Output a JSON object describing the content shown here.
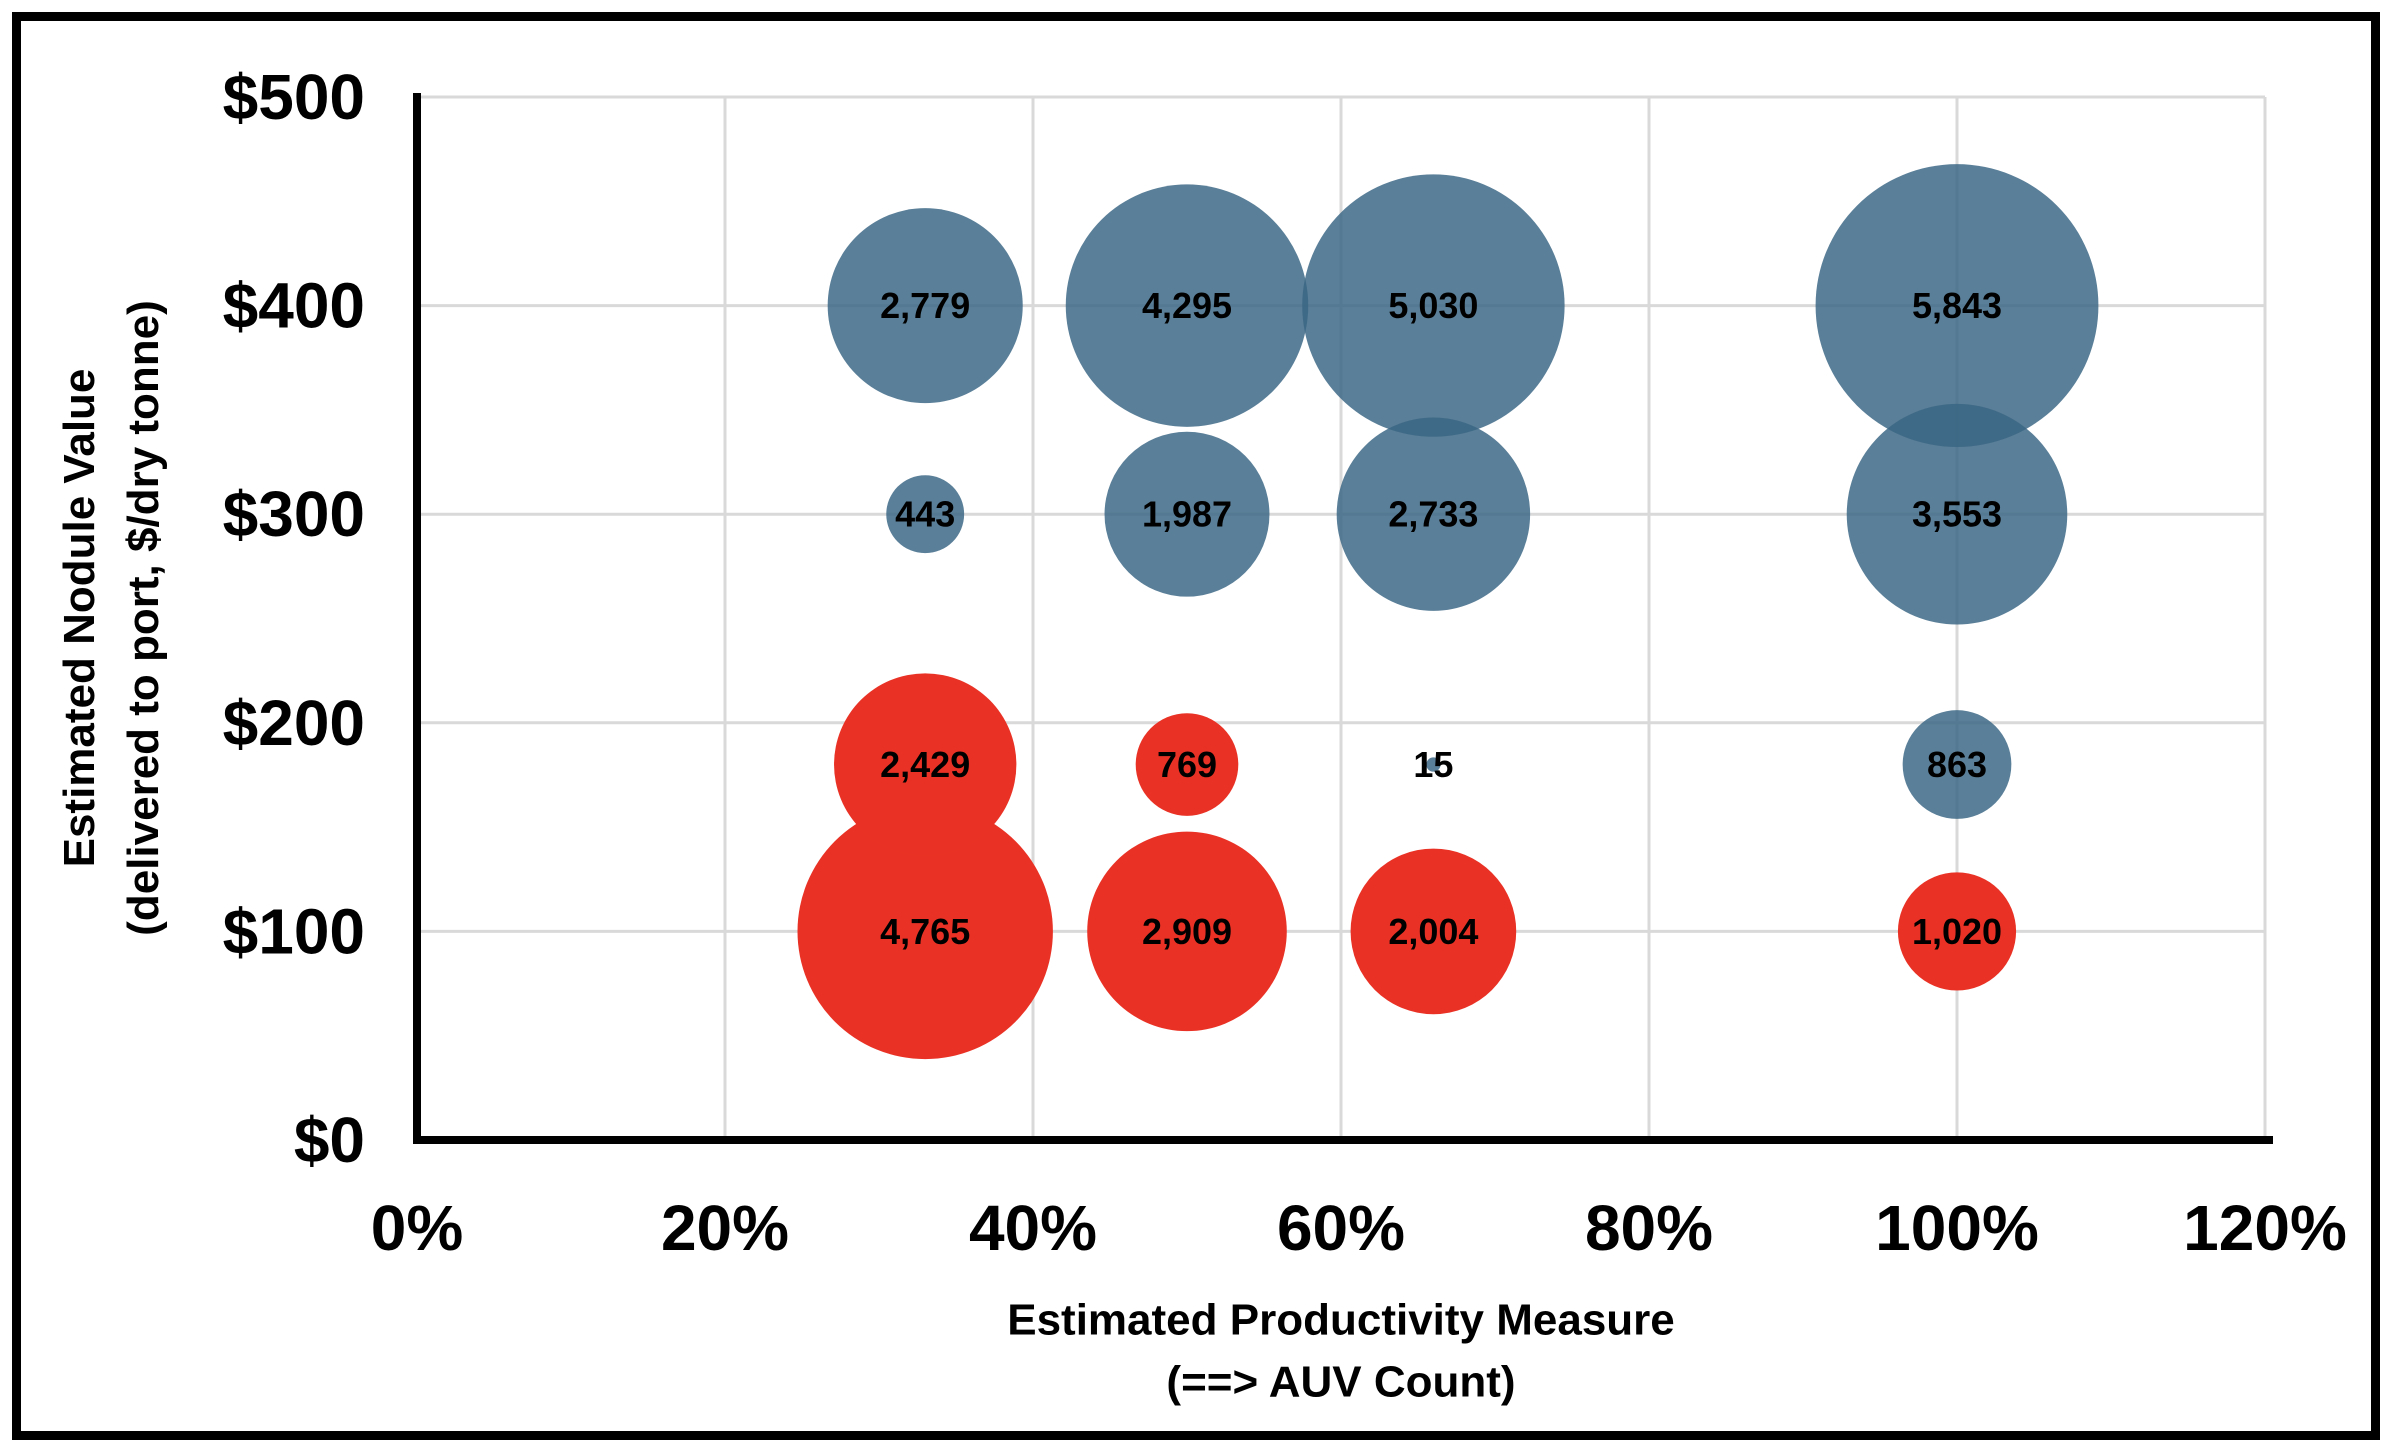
{
  "chart_data": {
    "type": "bubble",
    "title": "",
    "legend": "none",
    "grid": true,
    "x_axis": {
      "title_line1": "Estimated Productivity Measure",
      "title_line2": "(==> AUV Count)",
      "ticks": [
        "0%",
        "20%",
        "40%",
        "60%",
        "80%",
        "100%",
        "120%"
      ],
      "tick_values": [
        0,
        20,
        40,
        60,
        80,
        100,
        120
      ],
      "range": [
        0,
        120
      ]
    },
    "y_axis": {
      "title_line1": "Estimated Nodule Value",
      "title_line2": "(delivered to port, $/dry tonne)",
      "ticks": [
        "$0",
        "$100",
        "$200",
        "$300",
        "$400",
        "$500"
      ],
      "tick_values": [
        0,
        100,
        200,
        300,
        400,
        500
      ],
      "range": [
        0,
        500
      ]
    },
    "colors": {
      "blue_fill": "#3A6684",
      "blue_opacity": 0.84,
      "red_fill": "#E93225",
      "red_opacity": 1,
      "gridline": "#D9D9D9",
      "axis_line": "#000000",
      "label_text": "#000000",
      "frame": "#000000",
      "background": "#FFFFFF"
    },
    "series": [
      {
        "name": "blue-bubbles",
        "color_key": "blue",
        "points": [
          {
            "x": 33,
            "y": 400,
            "value": 2779,
            "label": "2,779"
          },
          {
            "x": 50,
            "y": 400,
            "value": 4295,
            "label": "4,295"
          },
          {
            "x": 66,
            "y": 400,
            "value": 5030,
            "label": "5,030"
          },
          {
            "x": 100,
            "y": 400,
            "value": 5843,
            "label": "5,843"
          },
          {
            "x": 33,
            "y": 300,
            "value": 443,
            "label": "443"
          },
          {
            "x": 50,
            "y": 300,
            "value": 1987,
            "label": "1,987"
          },
          {
            "x": 66,
            "y": 300,
            "value": 2733,
            "label": "2,733"
          },
          {
            "x": 100,
            "y": 300,
            "value": 3553,
            "label": "3,553"
          },
          {
            "x": 66,
            "y": 180,
            "value": 15,
            "label": "15"
          },
          {
            "x": 100,
            "y": 180,
            "value": 863,
            "label": "863"
          }
        ]
      },
      {
        "name": "red-bubbles",
        "color_key": "red",
        "points": [
          {
            "x": 33,
            "y": 180,
            "value": 2429,
            "label": "2,429"
          },
          {
            "x": 50,
            "y": 180,
            "value": 769,
            "label": "769"
          },
          {
            "x": 33,
            "y": 100,
            "value": 4765,
            "label": "4,765"
          },
          {
            "x": 50,
            "y": 100,
            "value": 2909,
            "label": "2,909"
          },
          {
            "x": 66,
            "y": 100,
            "value": 2004,
            "label": "2,004"
          },
          {
            "x": 100,
            "y": 100,
            "value": 1020,
            "label": "1,020"
          }
        ]
      }
    ]
  }
}
